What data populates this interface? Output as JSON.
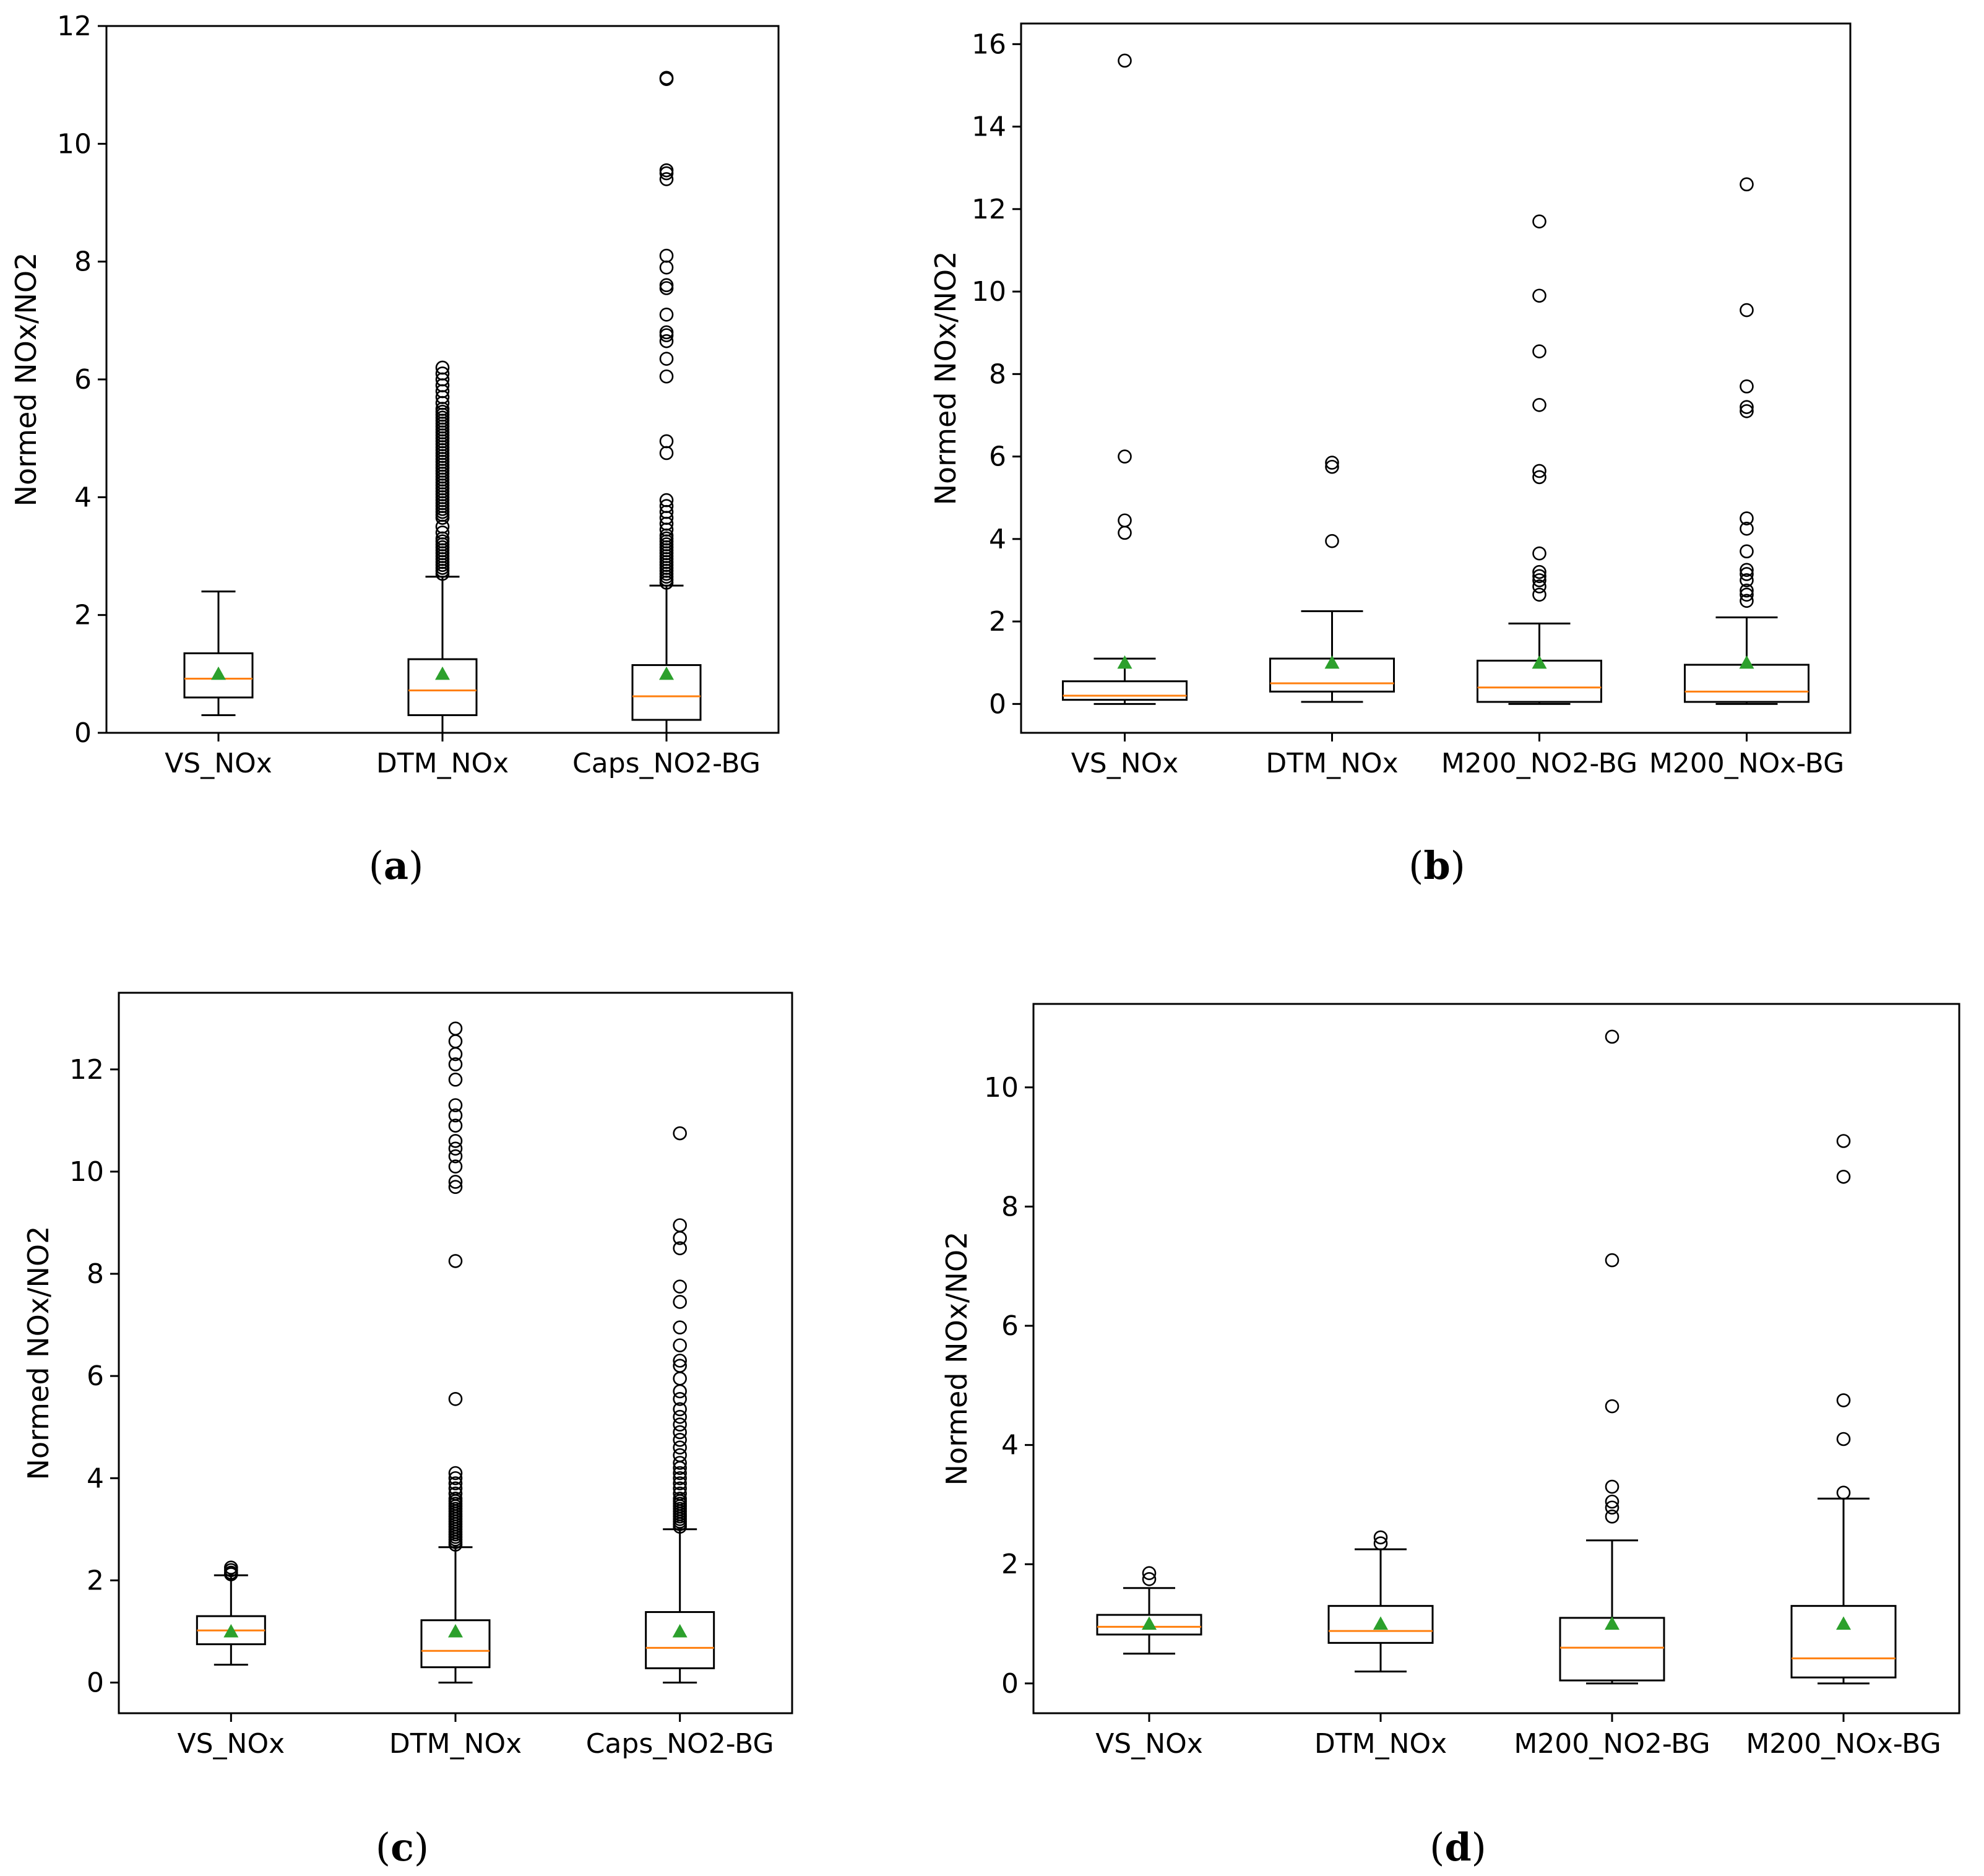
{
  "colors": {
    "median": "#ff7f0e",
    "mean": "#2ca02c",
    "box": "#000000"
  },
  "chart_data": [
    {
      "id": "a",
      "type": "box",
      "panel_label": "a",
      "ylabel": "Normed NOx/NO2",
      "ylim": [
        0,
        12
      ],
      "yticks": [
        0,
        2,
        4,
        6,
        8,
        10,
        12
      ],
      "categories": [
        "VS_NOx",
        "DTM_NOx",
        "Caps_NO2-BG"
      ],
      "boxes": [
        {
          "label": "VS_NOx",
          "whisker_low": 0.3,
          "q1": 0.6,
          "median": 0.92,
          "q3": 1.35,
          "whisker_high": 2.4,
          "mean": 1.0,
          "outliers": []
        },
        {
          "label": "DTM_NOx",
          "whisker_low": 0.0,
          "q1": 0.3,
          "median": 0.72,
          "q3": 1.25,
          "whisker_high": 2.65,
          "mean": 1.0,
          "outliers": [
            2.7,
            2.75,
            2.8,
            2.85,
            2.9,
            2.95,
            3.0,
            3.05,
            3.1,
            3.15,
            3.2,
            3.25,
            3.3,
            3.4,
            3.5,
            3.65,
            3.7,
            3.75,
            3.8,
            3.85,
            3.9,
            3.95,
            4.0,
            4.05,
            4.1,
            4.15,
            4.2,
            4.25,
            4.3,
            4.35,
            4.4,
            4.45,
            4.5,
            4.55,
            4.6,
            4.65,
            4.7,
            4.75,
            4.8,
            4.85,
            4.9,
            4.95,
            5.0,
            5.05,
            5.1,
            5.15,
            5.2,
            5.25,
            5.3,
            5.35,
            5.4,
            5.45,
            5.5,
            5.6,
            5.7,
            5.8,
            5.9,
            6.0,
            6.1,
            6.2
          ]
        },
        {
          "label": "Caps_NO2-BG",
          "whisker_low": 0.0,
          "q1": 0.22,
          "median": 0.62,
          "q3": 1.15,
          "whisker_high": 2.5,
          "mean": 1.0,
          "outliers": [
            2.55,
            2.6,
            2.65,
            2.7,
            2.75,
            2.8,
            2.85,
            2.9,
            2.95,
            3.0,
            3.05,
            3.1,
            3.15,
            3.2,
            3.25,
            3.3,
            3.35,
            3.45,
            3.55,
            3.65,
            3.75,
            3.85,
            3.95,
            4.75,
            4.95,
            6.05,
            6.35,
            6.65,
            6.75,
            6.8,
            7.1,
            7.55,
            7.6,
            7.9,
            8.1,
            9.4,
            9.5,
            9.55,
            11.1,
            11.12
          ]
        }
      ]
    },
    {
      "id": "b",
      "type": "box",
      "panel_label": "b",
      "ylabel": "Normed NOx/NO2",
      "ylim": [
        -0.7,
        16.5
      ],
      "yticks": [
        0,
        2,
        4,
        6,
        8,
        10,
        12,
        14,
        16
      ],
      "categories": [
        "VS_NOx",
        "DTM_NOx",
        "M200_NO2-BG",
        "M200_NOx-BG"
      ],
      "boxes": [
        {
          "label": "VS_NOx",
          "whisker_low": 0.0,
          "q1": 0.1,
          "median": 0.2,
          "q3": 0.55,
          "whisker_high": 1.1,
          "mean": 1.0,
          "outliers": [
            4.15,
            4.45,
            6.0,
            15.6
          ]
        },
        {
          "label": "DTM_NOx",
          "whisker_low": 0.05,
          "q1": 0.3,
          "median": 0.5,
          "q3": 1.1,
          "whisker_high": 2.25,
          "mean": 1.0,
          "outliers": [
            3.95,
            5.75,
            5.85
          ]
        },
        {
          "label": "M200_NO2-BG",
          "whisker_low": 0.0,
          "q1": 0.05,
          "median": 0.4,
          "q3": 1.05,
          "whisker_high": 1.95,
          "mean": 1.0,
          "outliers": [
            2.65,
            2.85,
            3.0,
            3.1,
            3.2,
            3.65,
            5.5,
            5.65,
            7.25,
            8.55,
            9.9,
            11.7
          ]
        },
        {
          "label": "M200_NOx-BG",
          "whisker_low": 0.0,
          "q1": 0.05,
          "median": 0.3,
          "q3": 0.95,
          "whisker_high": 2.1,
          "mean": 1.0,
          "outliers": [
            2.5,
            2.65,
            2.75,
            3.0,
            3.15,
            3.25,
            3.7,
            4.25,
            4.5,
            7.1,
            7.2,
            7.7,
            9.55,
            12.6
          ]
        }
      ]
    },
    {
      "id": "c",
      "type": "box",
      "panel_label": "c",
      "ylabel": "Normed NOx/NO2",
      "ylim": [
        -0.6,
        13.5
      ],
      "yticks": [
        0,
        2,
        4,
        6,
        8,
        10,
        12
      ],
      "categories": [
        "VS_NOx",
        "DTM_NOx",
        "Caps_NO2-BG"
      ],
      "boxes": [
        {
          "label": "VS_NOx",
          "whisker_low": 0.35,
          "q1": 0.75,
          "median": 1.02,
          "q3": 1.3,
          "whisker_high": 2.1,
          "mean": 1.0,
          "outliers": [
            2.12,
            2.15,
            2.2,
            2.25
          ]
        },
        {
          "label": "DTM_NOx",
          "whisker_low": 0.0,
          "q1": 0.3,
          "median": 0.62,
          "q3": 1.22,
          "whisker_high": 2.65,
          "mean": 1.0,
          "outliers": [
            2.7,
            2.75,
            2.8,
            2.85,
            2.9,
            2.95,
            3.0,
            3.05,
            3.1,
            3.15,
            3.2,
            3.25,
            3.3,
            3.35,
            3.4,
            3.45,
            3.5,
            3.55,
            3.6,
            3.7,
            3.8,
            3.9,
            4.0,
            4.1,
            5.55,
            8.25,
            9.7,
            9.8,
            10.1,
            10.3,
            10.45,
            10.6,
            10.9,
            11.1,
            11.3,
            11.8,
            12.1,
            12.3,
            12.55,
            12.8
          ]
        },
        {
          "label": "Caps_NO2-BG",
          "whisker_low": 0.0,
          "q1": 0.28,
          "median": 0.68,
          "q3": 1.38,
          "whisker_high": 3.0,
          "mean": 1.0,
          "outliers": [
            3.05,
            3.1,
            3.15,
            3.2,
            3.25,
            3.3,
            3.35,
            3.4,
            3.45,
            3.5,
            3.55,
            3.6,
            3.7,
            3.8,
            3.9,
            4.0,
            4.1,
            4.2,
            4.3,
            4.45,
            4.6,
            4.75,
            4.9,
            5.05,
            5.2,
            5.35,
            5.55,
            5.7,
            5.95,
            6.2,
            6.3,
            6.6,
            6.95,
            7.45,
            7.75,
            8.5,
            8.7,
            8.95,
            10.75
          ]
        }
      ]
    },
    {
      "id": "d",
      "type": "box",
      "panel_label": "d",
      "ylabel": "Normed NOx/NO2",
      "ylim": [
        -0.5,
        11.4
      ],
      "yticks": [
        0,
        2,
        4,
        6,
        8,
        10
      ],
      "categories": [
        "VS_NOx",
        "DTM_NOx",
        "M200_NO2-BG",
        "M200_NOx-BG"
      ],
      "boxes": [
        {
          "label": "VS_NOx",
          "whisker_low": 0.5,
          "q1": 0.82,
          "median": 0.95,
          "q3": 1.15,
          "whisker_high": 1.6,
          "mean": 1.0,
          "outliers": [
            1.75,
            1.85
          ]
        },
        {
          "label": "DTM_NOx",
          "whisker_low": 0.2,
          "q1": 0.68,
          "median": 0.88,
          "q3": 1.3,
          "whisker_high": 2.25,
          "mean": 1.0,
          "outliers": [
            2.35,
            2.45
          ]
        },
        {
          "label": "M200_NO2-BG",
          "whisker_low": 0.0,
          "q1": 0.05,
          "median": 0.6,
          "q3": 1.1,
          "whisker_high": 2.4,
          "mean": 1.0,
          "outliers": [
            2.8,
            2.95,
            3.05,
            3.3,
            4.65,
            7.1,
            10.85
          ]
        },
        {
          "label": "M200_NOx-BG",
          "whisker_low": 0.0,
          "q1": 0.1,
          "median": 0.42,
          "q3": 1.3,
          "whisker_high": 3.1,
          "mean": 1.0,
          "outliers": [
            3.2,
            4.1,
            4.75,
            8.5,
            9.1
          ]
        }
      ]
    }
  ]
}
